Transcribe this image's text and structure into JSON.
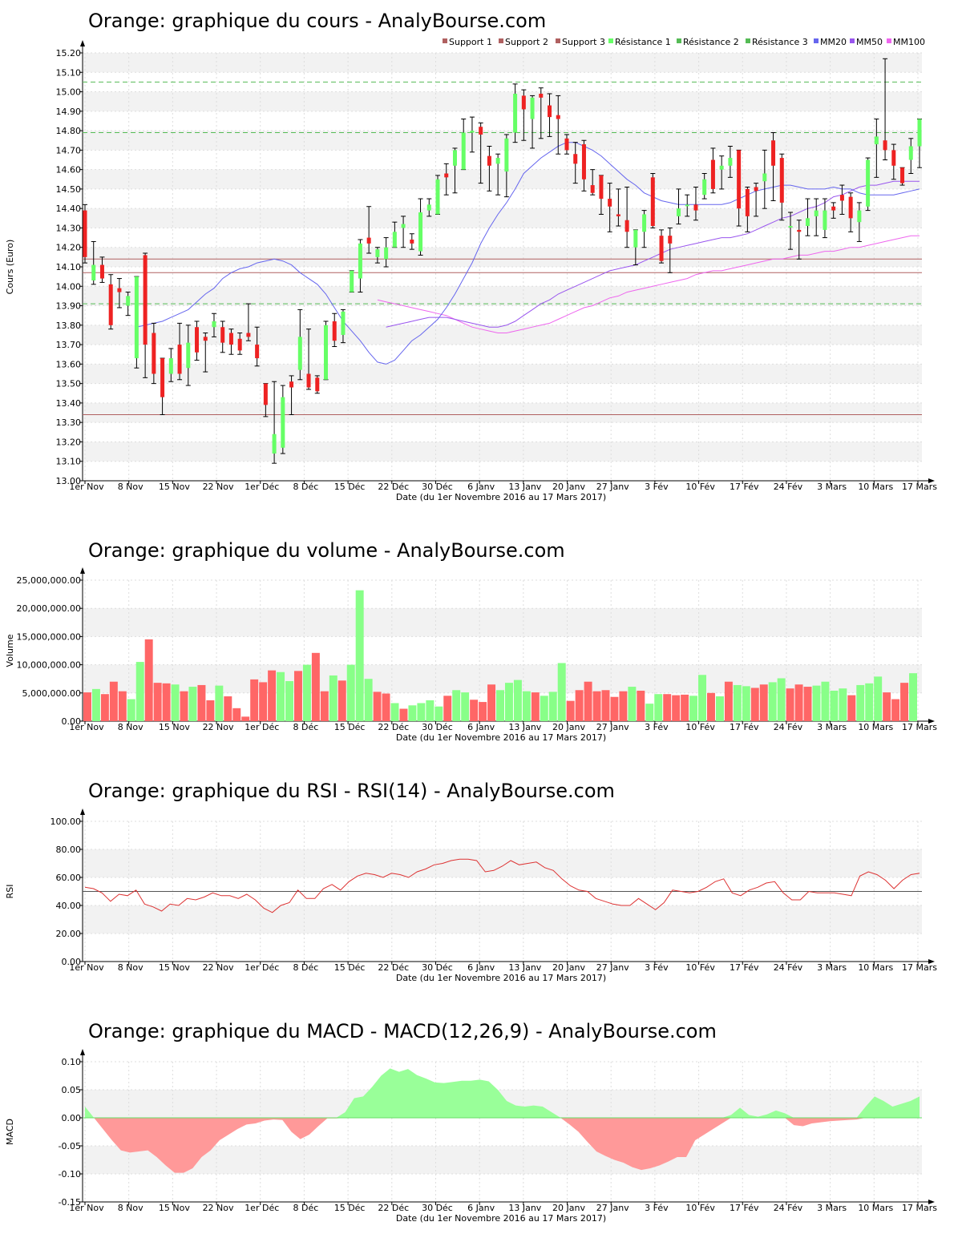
{
  "date_ticks": [
    "1er Nov",
    "8 Nov",
    "15 Nov",
    "22 Nov",
    "1er Déc",
    "8 Déc",
    "15 Déc",
    "22 Déc",
    "30 Déc",
    "6 Janv",
    "13 Janv",
    "20 Janv",
    "27 Janv",
    "3 Fév",
    "10 Fév",
    "17 Fév",
    "24 Fév",
    "3 Mars",
    "10 Mars",
    "17 Mars"
  ],
  "x_label": "Date (du 1er Novembre 2016 au 17 Mars 2017)",
  "colors": {
    "up": "#66ff66",
    "down": "#ee2222",
    "support": "#b06060",
    "resistance": "#55bb55",
    "mm20": "#6666ee",
    "mm50": "#9955ee",
    "mm100": "#ee66ee",
    "rsi": "#dd3333",
    "vol_up": "#88ff88",
    "vol_down": "#ff6666",
    "macd_pos": "#99ff99",
    "macd_neg": "#ff9999"
  },
  "chart_data": [
    {
      "type": "candlestick",
      "title": "Orange: graphique du cours - AnalyBourse.com",
      "ylabel": "Cours (Euro)",
      "ylim": [
        13.0,
        15.2
      ],
      "y_ticks": [
        "13.00",
        "13.10",
        "13.20",
        "13.30",
        "13.40",
        "13.50",
        "13.60",
        "13.70",
        "13.80",
        "13.90",
        "14.00",
        "14.10",
        "14.20",
        "14.30",
        "14.40",
        "14.50",
        "14.60",
        "14.70",
        "14.80",
        "14.90",
        "15.00",
        "15.10",
        "15.20"
      ],
      "legend": [
        "Support 1",
        "Support 2",
        "Support 3",
        "Résistance 1",
        "Résistance 2",
        "Résistance 3",
        "MM20",
        "MM50",
        "MM100"
      ],
      "levels": {
        "support_1": 14.14,
        "support_2": 14.07,
        "support_3": 13.34,
        "resistance_1": 13.91,
        "resistance_2": 14.79,
        "resistance_3": 15.05
      },
      "candles": [
        [
          14.39,
          14.42,
          14.12,
          14.15
        ],
        [
          14.03,
          14.23,
          14.01,
          14.11
        ],
        [
          14.11,
          14.15,
          14.02,
          14.04
        ],
        [
          14.01,
          14.06,
          13.78,
          13.8
        ],
        [
          13.99,
          14.04,
          13.89,
          13.97
        ],
        [
          13.9,
          13.97,
          13.85,
          13.95
        ],
        [
          13.63,
          14.05,
          13.58,
          14.05
        ],
        [
          14.16,
          14.17,
          13.53,
          13.7
        ],
        [
          13.76,
          13.81,
          13.5,
          13.55
        ],
        [
          13.63,
          13.63,
          13.34,
          13.43
        ],
        [
          13.55,
          13.68,
          13.51,
          13.63
        ],
        [
          13.7,
          13.81,
          13.52,
          13.55
        ],
        [
          13.58,
          13.8,
          13.49,
          13.71
        ],
        [
          13.79,
          13.82,
          13.62,
          13.66
        ],
        [
          13.74,
          13.76,
          13.56,
          13.72
        ],
        [
          13.79,
          13.86,
          13.74,
          13.82
        ],
        [
          13.79,
          13.82,
          13.66,
          13.71
        ],
        [
          13.76,
          13.78,
          13.65,
          13.7
        ],
        [
          13.73,
          13.76,
          13.65,
          13.67
        ],
        [
          13.76,
          13.91,
          13.72,
          13.74
        ],
        [
          13.7,
          13.79,
          13.59,
          13.63
        ],
        [
          13.5,
          13.5,
          13.33,
          13.39
        ],
        [
          13.14,
          13.51,
          13.09,
          13.24
        ],
        [
          13.17,
          13.49,
          13.14,
          13.43
        ],
        [
          13.51,
          13.54,
          13.34,
          13.48
        ],
        [
          13.57,
          13.88,
          13.52,
          13.74
        ],
        [
          13.55,
          13.78,
          13.47,
          13.48
        ],
        [
          13.53,
          13.54,
          13.45,
          13.46
        ],
        [
          13.52,
          13.82,
          13.52,
          13.8
        ],
        [
          13.82,
          13.86,
          13.69,
          13.72
        ],
        [
          13.75,
          13.88,
          13.71,
          13.87
        ],
        [
          13.97,
          14.08,
          13.97,
          14.08
        ],
        [
          14.04,
          14.24,
          13.97,
          14.22
        ],
        [
          14.25,
          14.41,
          14.17,
          14.22
        ],
        [
          14.15,
          14.2,
          14.12,
          14.19
        ],
        [
          14.14,
          14.25,
          14.1,
          14.2
        ],
        [
          14.2,
          14.33,
          14.2,
          14.28
        ],
        [
          14.3,
          14.36,
          14.2,
          14.32
        ],
        [
          14.24,
          14.27,
          14.19,
          14.22
        ],
        [
          14.18,
          14.45,
          14.16,
          14.38
        ],
        [
          14.39,
          14.45,
          14.36,
          14.42
        ],
        [
          14.37,
          14.57,
          14.37,
          14.55
        ],
        [
          14.58,
          14.63,
          14.47,
          14.56
        ],
        [
          14.62,
          14.71,
          14.48,
          14.7
        ],
        [
          14.6,
          14.86,
          14.6,
          14.79
        ],
        [
          14.79,
          14.87,
          14.69,
          14.8
        ],
        [
          14.82,
          14.84,
          14.53,
          14.78
        ],
        [
          14.67,
          14.72,
          14.49,
          14.62
        ],
        [
          14.63,
          14.68,
          14.47,
          14.66
        ],
        [
          14.59,
          14.78,
          14.46,
          14.76
        ],
        [
          14.79,
          15.04,
          14.74,
          14.99
        ],
        [
          14.98,
          15.01,
          14.75,
          14.91
        ],
        [
          14.86,
          14.98,
          14.71,
          14.97
        ],
        [
          14.99,
          15.02,
          14.76,
          14.97
        ],
        [
          14.93,
          14.99,
          14.77,
          14.87
        ],
        [
          14.88,
          14.98,
          14.68,
          14.86
        ],
        [
          14.76,
          14.78,
          14.68,
          14.7
        ],
        [
          14.68,
          14.74,
          14.53,
          14.63
        ],
        [
          14.73,
          14.75,
          14.49,
          14.55
        ],
        [
          14.52,
          14.6,
          14.47,
          14.48
        ],
        [
          14.57,
          14.57,
          14.37,
          14.45
        ],
        [
          14.45,
          14.53,
          14.28,
          14.41
        ],
        [
          14.37,
          14.5,
          14.31,
          14.36
        ],
        [
          14.34,
          14.51,
          14.2,
          14.28
        ],
        [
          14.2,
          14.29,
          14.11,
          14.29
        ],
        [
          14.28,
          14.39,
          14.2,
          14.37
        ],
        [
          14.56,
          14.58,
          14.3,
          14.31
        ],
        [
          14.26,
          14.29,
          14.12,
          14.13
        ],
        [
          14.26,
          14.3,
          14.07,
          14.22
        ],
        [
          14.36,
          14.5,
          14.32,
          14.4
        ],
        [
          14.42,
          14.47,
          14.36,
          14.42
        ],
        [
          14.42,
          14.51,
          14.34,
          14.39
        ],
        [
          14.47,
          14.58,
          14.45,
          14.55
        ],
        [
          14.65,
          14.71,
          14.48,
          14.5
        ],
        [
          14.6,
          14.67,
          14.5,
          14.62
        ],
        [
          14.62,
          14.72,
          14.56,
          14.66
        ],
        [
          14.7,
          14.7,
          14.31,
          14.4
        ],
        [
          14.5,
          14.51,
          14.28,
          14.36
        ],
        [
          14.51,
          14.53,
          14.36,
          14.49
        ],
        [
          14.54,
          14.7,
          14.4,
          14.58
        ],
        [
          14.75,
          14.79,
          14.44,
          14.62
        ],
        [
          14.66,
          14.68,
          14.34,
          14.43
        ],
        [
          14.31,
          14.38,
          14.19,
          14.31
        ],
        [
          14.29,
          14.34,
          14.14,
          14.28
        ],
        [
          14.31,
          14.45,
          14.26,
          14.35
        ],
        [
          14.36,
          14.45,
          14.26,
          14.39
        ],
        [
          14.29,
          14.45,
          14.25,
          14.39
        ],
        [
          14.41,
          14.43,
          14.35,
          14.39
        ],
        [
          14.47,
          14.52,
          14.37,
          14.44
        ],
        [
          14.46,
          14.48,
          14.28,
          14.35
        ],
        [
          14.33,
          14.43,
          14.23,
          14.39
        ],
        [
          14.41,
          14.66,
          14.39,
          14.65
        ],
        [
          14.73,
          14.86,
          14.56,
          14.77
        ],
        [
          14.75,
          15.17,
          14.65,
          14.7
        ],
        [
          14.7,
          14.73,
          14.55,
          14.62
        ],
        [
          14.61,
          14.61,
          14.52,
          14.53
        ],
        [
          14.65,
          14.76,
          14.58,
          14.72
        ],
        [
          14.72,
          14.86,
          14.61,
          14.86
        ]
      ],
      "mm20": [
        13.79,
        13.8,
        13.81,
        13.82,
        13.84,
        13.86,
        13.88,
        13.92,
        13.96,
        13.99,
        14.04,
        14.07,
        14.09,
        14.1,
        14.12,
        14.13,
        14.14,
        14.13,
        14.11,
        14.07,
        14.04,
        14.01,
        13.96,
        13.89,
        13.82,
        13.77,
        13.72,
        13.66,
        13.61,
        13.6,
        13.62,
        13.67,
        13.72,
        13.75,
        13.79,
        13.83,
        13.89,
        13.96,
        14.04,
        14.12,
        14.22,
        14.3,
        14.37,
        14.43,
        14.5,
        14.58,
        14.62,
        14.66,
        14.69,
        14.72,
        14.74,
        14.74,
        14.72,
        14.7,
        14.67,
        14.63,
        14.59,
        14.55,
        14.52,
        14.48,
        14.46,
        14.44,
        14.43,
        14.42,
        14.42,
        14.42,
        14.42,
        14.42,
        14.42,
        14.43,
        14.45,
        14.47,
        14.49,
        14.5,
        14.51,
        14.52,
        14.52,
        14.51,
        14.5,
        14.5,
        14.5,
        14.51,
        14.5,
        14.5,
        14.48,
        14.47,
        14.47,
        14.47,
        14.47,
        14.48,
        14.49,
        14.5
      ],
      "mm50": [
        13.79,
        13.8,
        13.81,
        13.82,
        13.83,
        13.84,
        13.84,
        13.84,
        13.83,
        13.82,
        13.81,
        13.8,
        13.79,
        13.79,
        13.8,
        13.82,
        13.85,
        13.88,
        13.91,
        13.93,
        13.96,
        13.98,
        14.0,
        14.02,
        14.04,
        14.06,
        14.08,
        14.09,
        14.1,
        14.11,
        14.13,
        14.15,
        14.17,
        14.19,
        14.2,
        14.21,
        14.22,
        14.23,
        14.24,
        14.25,
        14.25,
        14.26,
        14.27,
        14.29,
        14.31,
        14.33,
        14.35,
        14.36,
        14.38,
        14.4,
        14.41,
        14.43,
        14.46,
        14.47,
        14.49,
        14.51,
        14.52,
        14.52,
        14.53,
        14.54,
        14.54,
        14.54,
        14.54
      ],
      "mm100": [
        13.93,
        13.92,
        13.91,
        13.9,
        13.89,
        13.88,
        13.87,
        13.86,
        13.85,
        13.83,
        13.81,
        13.79,
        13.78,
        13.77,
        13.76,
        13.76,
        13.77,
        13.78,
        13.79,
        13.8,
        13.81,
        13.83,
        13.85,
        13.87,
        13.89,
        13.9,
        13.92,
        13.94,
        13.95,
        13.97,
        13.98,
        13.99,
        14.0,
        14.01,
        14.02,
        14.03,
        14.04,
        14.06,
        14.07,
        14.08,
        14.08,
        14.09,
        14.1,
        14.11,
        14.12,
        14.13,
        14.14,
        14.14,
        14.15,
        14.16,
        14.16,
        14.17,
        14.18,
        14.18,
        14.19,
        14.2,
        14.2,
        14.21,
        14.22,
        14.23,
        14.24,
        14.25,
        14.26,
        14.26
      ]
    },
    {
      "type": "bar",
      "title": "Orange: graphique du volume - AnalyBourse.com",
      "ylabel": "Volume",
      "ylim": [
        0,
        25000000
      ],
      "y_ticks": [
        "0.00",
        "5,000,000.00",
        "10,000,000.00",
        "15,000,000.00",
        "20,000,000.00",
        "25,000,000.00"
      ],
      "values": [
        5.1,
        5.7,
        4.8,
        7.0,
        5.3,
        3.9,
        10.5,
        14.5,
        6.8,
        6.7,
        6.5,
        5.3,
        6.1,
        6.4,
        3.7,
        6.3,
        4.4,
        2.3,
        0.8,
        7.4,
        6.9,
        9.0,
        8.7,
        7.1,
        8.9,
        10.0,
        12.1,
        5.3,
        8.1,
        7.2,
        10.0,
        23.2,
        7.5,
        5.2,
        4.9,
        3.2,
        2.2,
        2.8,
        3.2,
        3.7,
        2.6,
        4.5,
        5.5,
        5.1,
        3.8,
        3.4,
        6.5,
        5.5,
        6.8,
        7.3,
        5.3,
        5.1,
        4.5,
        5.2,
        10.3,
        3.6,
        5.5,
        7.0,
        5.3,
        5.5,
        4.3,
        5.3,
        6.1,
        5.4,
        3.1,
        4.8,
        4.8,
        4.6,
        4.7,
        4.5,
        8.2,
        5.0,
        4.4,
        7.0,
        6.4,
        6.2,
        5.9,
        6.5,
        6.9,
        7.6,
        5.8,
        6.5,
        6.1,
        6.3,
        7.0,
        5.4,
        5.8,
        4.6,
        6.4,
        6.7,
        7.9,
        5.1,
        3.9,
        6.8,
        8.5
      ],
      "up": [
        0,
        1,
        0,
        0,
        0,
        1,
        1,
        0,
        0,
        0,
        1,
        0,
        1,
        0,
        0,
        1,
        0,
        0,
        0,
        0,
        0,
        0,
        1,
        1,
        0,
        1,
        0,
        0,
        1,
        0,
        1,
        1,
        1,
        0,
        0,
        1,
        0,
        1,
        1,
        1,
        1,
        0,
        1,
        1,
        0,
        0,
        0,
        1,
        1,
        1,
        1,
        0,
        1,
        1,
        1,
        0,
        0,
        0,
        0,
        0,
        0,
        0,
        1,
        0,
        1,
        1,
        0,
        0,
        0,
        1,
        1,
        0,
        1,
        0,
        1,
        1,
        0,
        0,
        1,
        1,
        0,
        0,
        0,
        1,
        1,
        1,
        1,
        0,
        1,
        1,
        1,
        0,
        0,
        0,
        1,
        1
      ],
      "value_unit": "millions"
    },
    {
      "type": "line",
      "title": "Orange: graphique du RSI - RSI(14) - AnalyBourse.com",
      "ylabel": "RSI",
      "ylim": [
        0,
        100
      ],
      "y_ticks": [
        "0.00",
        "20.00",
        "40.00",
        "60.00",
        "80.00",
        "100.00"
      ],
      "reference_line": 50,
      "values": [
        53,
        52,
        49,
        43,
        48,
        47,
        51,
        41,
        39,
        36,
        41,
        40,
        45,
        44,
        46,
        49,
        47,
        47,
        45,
        48,
        44,
        38,
        35,
        40,
        42,
        51,
        45,
        45,
        52,
        55,
        51,
        57,
        61,
        63,
        62,
        60,
        63,
        62,
        60,
        64,
        66,
        69,
        70,
        72,
        73,
        73,
        72,
        64,
        65,
        68,
        72,
        69,
        70,
        71,
        67,
        65,
        59,
        54,
        51,
        50,
        45,
        43,
        41,
        40,
        40,
        45,
        41,
        37,
        42,
        51,
        50,
        49,
        50,
        53,
        57,
        59,
        49,
        47,
        51,
        53,
        56,
        57,
        49,
        44,
        44,
        50,
        49,
        49,
        49,
        48,
        47,
        61,
        64,
        62,
        58,
        52,
        58,
        62,
        63
      ],
      "line_color": "#dd3333"
    },
    {
      "type": "area",
      "title": "Orange: graphique du MACD - MACD(12,26,9) - AnalyBourse.com",
      "ylabel": "MACD",
      "ylim": [
        -0.15,
        0.1
      ],
      "y_ticks": [
        "-0.15",
        "-0.10",
        "-0.05",
        "0.00",
        "0.05",
        "0.10"
      ],
      "values": [
        0.02,
        0.0,
        -0.02,
        -0.04,
        -0.058,
        -0.062,
        -0.06,
        -0.058,
        -0.07,
        -0.085,
        -0.098,
        -0.098,
        -0.09,
        -0.07,
        -0.058,
        -0.04,
        -0.03,
        -0.02,
        -0.012,
        -0.01,
        -0.005,
        -0.003,
        -0.004,
        -0.025,
        -0.038,
        -0.03,
        -0.015,
        -0.001,
        -0.001,
        0.01,
        0.035,
        0.038,
        0.055,
        0.075,
        0.088,
        0.082,
        0.087,
        0.076,
        0.07,
        0.063,
        0.062,
        0.064,
        0.066,
        0.066,
        0.068,
        0.065,
        0.05,
        0.03,
        0.022,
        0.02,
        0.022,
        0.02,
        0.01,
        0.0,
        -0.012,
        -0.025,
        -0.043,
        -0.06,
        -0.068,
        -0.075,
        -0.08,
        -0.088,
        -0.093,
        -0.09,
        -0.085,
        -0.078,
        -0.07,
        -0.07,
        -0.04,
        -0.03,
        -0.02,
        -0.01,
        0.005,
        0.018,
        0.005,
        0.002,
        0.006,
        0.013,
        0.008,
        -0.013,
        -0.015,
        -0.01,
        -0.008,
        -0.006,
        -0.005,
        -0.004,
        -0.003,
        0.02,
        0.038,
        0.03,
        0.02,
        0.025,
        0.03,
        0.038
      ],
      "colors": {
        "positive": "#99ff99",
        "negative": "#ff9999"
      }
    }
  ]
}
